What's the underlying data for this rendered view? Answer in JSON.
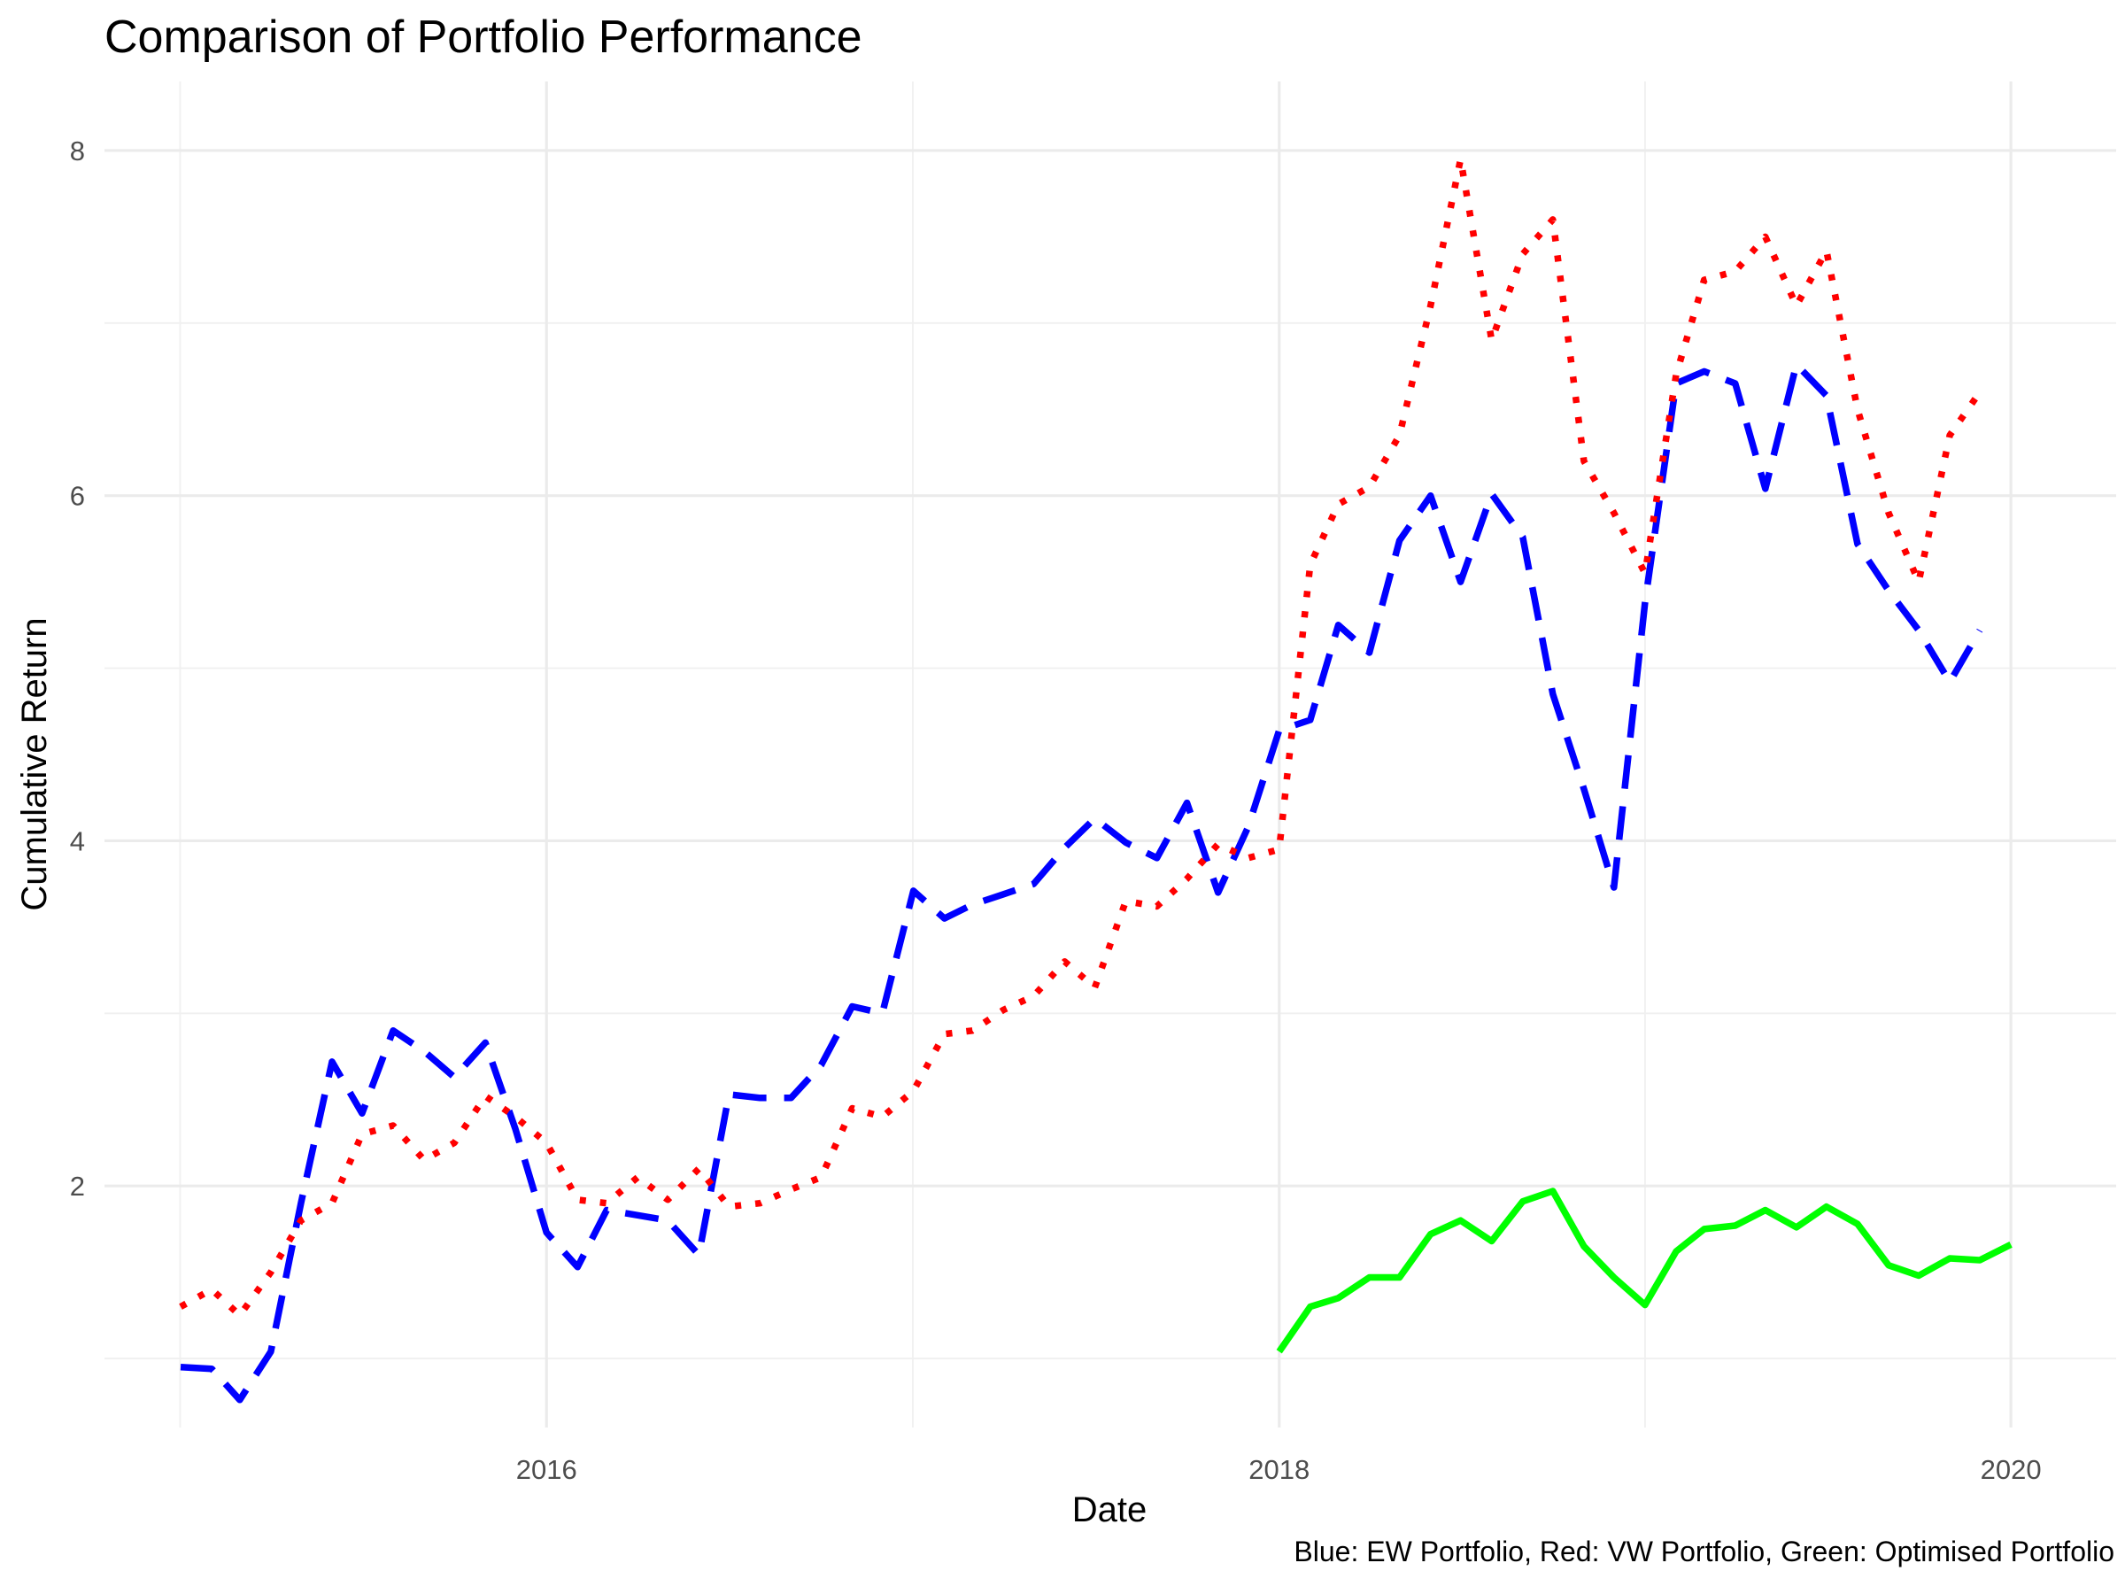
{
  "chart_data": {
    "type": "line",
    "title": "Comparison of Portfolio Performance",
    "xlabel": "Date",
    "ylabel": "Cumulative Return",
    "caption": "Blue: EW Portfolio, Red: VW Portfolio, Green: Optimised Portfolio",
    "xlim": [
      "2014-10-17",
      "2020-04-15"
    ],
    "ylim": [
      0.6,
      8.4
    ],
    "x_ticks": [
      {
        "value": "2016-01-01",
        "label": "2016"
      },
      {
        "value": "2018-01-01",
        "label": "2018"
      },
      {
        "value": "2020-01-01",
        "label": "2020"
      }
    ],
    "y_ticks": [
      2,
      4,
      6,
      8
    ],
    "grid": true,
    "legend": "none",
    "series": [
      {
        "key": "ew",
        "color": "#0000ff",
        "linestyle": "dashed",
        "x": [
          "2015-01-01",
          "2015-02-01",
          "2015-03-01",
          "2015-04-01",
          "2015-05-01",
          "2015-06-01",
          "2015-07-01",
          "2015-08-01",
          "2015-09-01",
          "2015-10-01",
          "2015-11-01",
          "2015-12-01",
          "2016-01-01",
          "2016-02-01",
          "2016-03-01",
          "2016-04-01",
          "2016-05-01",
          "2016-06-01",
          "2016-07-01",
          "2016-08-01",
          "2016-09-01",
          "2016-10-01",
          "2016-11-01",
          "2016-12-01",
          "2017-01-01",
          "2017-02-01",
          "2017-03-01",
          "2017-04-01",
          "2017-05-01",
          "2017-06-01",
          "2017-07-01",
          "2017-08-01",
          "2017-09-01",
          "2017-10-01",
          "2017-11-01",
          "2017-12-01",
          "2018-01-01",
          "2018-02-01",
          "2018-03-01",
          "2018-04-01",
          "2018-05-01",
          "2018-06-01",
          "2018-07-01",
          "2018-08-01",
          "2018-09-01",
          "2018-10-01",
          "2018-11-01",
          "2018-12-01",
          "2019-01-01",
          "2019-02-01",
          "2019-03-01",
          "2019-04-01",
          "2019-05-01",
          "2019-06-01",
          "2019-07-01",
          "2019-08-01",
          "2019-09-01",
          "2019-10-01",
          "2019-11-01",
          "2019-12-01"
        ],
        "values": [
          0.95,
          0.94,
          0.76,
          1.04,
          1.9,
          2.72,
          2.42,
          2.9,
          2.78,
          2.63,
          2.83,
          2.33,
          1.73,
          1.53,
          1.86,
          1.83,
          1.8,
          1.6,
          2.53,
          2.51,
          2.51,
          2.7,
          3.04,
          3.0,
          3.71,
          3.55,
          3.63,
          3.69,
          3.75,
          3.96,
          4.13,
          3.99,
          3.9,
          4.22,
          3.7,
          4.08,
          4.64,
          4.7,
          5.25,
          5.09,
          5.74,
          6.0,
          5.5,
          6.01,
          5.76,
          4.85,
          4.3,
          3.73,
          5.38,
          6.65,
          6.72,
          6.65,
          6.04,
          6.76,
          6.58,
          5.72,
          5.45,
          5.22,
          4.92,
          5.22
        ]
      },
      {
        "key": "vw",
        "color": "#ff0000",
        "linestyle": "dotted",
        "x": [
          "2015-01-01",
          "2015-02-01",
          "2015-03-01",
          "2015-04-01",
          "2015-05-01",
          "2015-06-01",
          "2015-07-01",
          "2015-08-01",
          "2015-09-01",
          "2015-10-01",
          "2015-11-01",
          "2015-12-01",
          "2016-01-01",
          "2016-02-01",
          "2016-03-01",
          "2016-04-01",
          "2016-05-01",
          "2016-06-01",
          "2016-07-01",
          "2016-08-01",
          "2016-09-01",
          "2016-10-01",
          "2016-11-01",
          "2016-12-01",
          "2017-01-01",
          "2017-02-01",
          "2017-03-01",
          "2017-04-01",
          "2017-05-01",
          "2017-06-01",
          "2017-07-01",
          "2017-08-01",
          "2017-09-01",
          "2017-10-01",
          "2017-11-01",
          "2017-12-01",
          "2018-01-01",
          "2018-02-01",
          "2018-03-01",
          "2018-04-01",
          "2018-05-01",
          "2018-06-01",
          "2018-07-01",
          "2018-08-01",
          "2018-09-01",
          "2018-10-01",
          "2018-11-01",
          "2018-12-01",
          "2019-01-01",
          "2019-02-01",
          "2019-03-01",
          "2019-04-01",
          "2019-05-01",
          "2019-06-01",
          "2019-07-01",
          "2019-08-01",
          "2019-09-01",
          "2019-10-01",
          "2019-11-01",
          "2019-12-01"
        ],
        "values": [
          1.3,
          1.4,
          1.25,
          1.5,
          1.8,
          1.9,
          2.3,
          2.35,
          2.15,
          2.25,
          2.52,
          2.4,
          2.25,
          1.92,
          1.9,
          2.05,
          1.92,
          2.1,
          1.88,
          1.9,
          1.98,
          2.05,
          2.45,
          2.4,
          2.55,
          2.88,
          2.9,
          3.02,
          3.1,
          3.3,
          3.15,
          3.65,
          3.62,
          3.78,
          3.98,
          3.9,
          3.95,
          5.6,
          5.95,
          6.05,
          6.35,
          7.1,
          7.95,
          6.9,
          7.4,
          7.6,
          6.2,
          5.9,
          5.55,
          6.7,
          7.25,
          7.3,
          7.5,
          7.1,
          7.42,
          6.5,
          5.9,
          5.5,
          6.35,
          6.6
        ]
      },
      {
        "key": "opt",
        "color": "#00ff00",
        "linestyle": "solid",
        "x": [
          "2018-01-01",
          "2018-02-01",
          "2018-03-01",
          "2018-04-01",
          "2018-05-01",
          "2018-06-01",
          "2018-07-01",
          "2018-08-01",
          "2018-09-01",
          "2018-10-01",
          "2018-11-01",
          "2018-12-01",
          "2019-01-01",
          "2019-02-01",
          "2019-03-01",
          "2019-04-01",
          "2019-05-01",
          "2019-06-01",
          "2019-07-01",
          "2019-08-01",
          "2019-09-01",
          "2019-10-01",
          "2019-11-01",
          "2019-12-01",
          "2020-01-01"
        ],
        "values": [
          1.04,
          1.3,
          1.35,
          1.47,
          1.47,
          1.72,
          1.8,
          1.68,
          1.91,
          1.97,
          1.65,
          1.47,
          1.31,
          1.62,
          1.75,
          1.77,
          1.86,
          1.76,
          1.88,
          1.78,
          1.54,
          1.48,
          1.58,
          1.57,
          1.66
        ]
      }
    ]
  }
}
